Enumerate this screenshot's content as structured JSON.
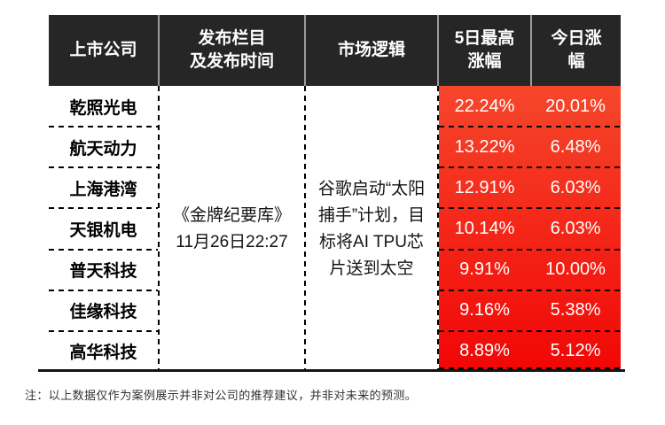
{
  "table": {
    "headers": {
      "company": "上市公司",
      "column_time": "发布栏目\n及发布时间",
      "logic": "市场逻辑",
      "five_day_gain": "5日最高\n涨幅",
      "today_gain": "今日涨\n幅"
    },
    "source": "《金牌纪要库》\n11月26日22:27",
    "market_logic": "谷歌启动“太阳\n捕手”计划，目\n标将AI TPU芯\n片送到太空",
    "rows": [
      {
        "company": "乾照光电",
        "five_day": "22.24%",
        "today": "20.01%"
      },
      {
        "company": "航天动力",
        "five_day": "13.22%",
        "today": "6.48%"
      },
      {
        "company": "上海港湾",
        "five_day": "12.91%",
        "today": "6.03%"
      },
      {
        "company": "天银机电",
        "five_day": "10.14%",
        "today": "6.03%"
      },
      {
        "company": "普天科技",
        "five_day": "9.91%",
        "today": "10.00%"
      },
      {
        "company": "佳缘科技",
        "five_day": "9.16%",
        "today": "5.38%"
      },
      {
        "company": "高华科技",
        "five_day": "8.89%",
        "today": "5.12%"
      }
    ]
  },
  "footnote": "注：以上数据仅作为案例展示并非对公司的推荐建议，并非对未来的预测。",
  "colors": {
    "header_bg": "#262626",
    "header_divider": "#9c9c9c",
    "gain_gradient_top": "#F5472B",
    "gain_gradient_bottom": "#F20606",
    "gain_text": "#FFFFFF"
  },
  "chart_data": {
    "type": "table",
    "columns": [
      "上市公司",
      "发布栏目及发布时间",
      "市场逻辑",
      "5日最高涨幅",
      "今日涨幅"
    ],
    "merged_values": {
      "发布栏目及发布时间": "《金牌纪要库》11月26日22:27",
      "市场逻辑": "谷歌启动“太阳捕手”计划，目标将AI TPU芯片送到太空"
    },
    "rows": [
      [
        "乾照光电",
        "22.24%",
        "20.01%"
      ],
      [
        "航天动力",
        "13.22%",
        "6.48%"
      ],
      [
        "上海港湾",
        "12.91%",
        "6.03%"
      ],
      [
        "天银机电",
        "10.14%",
        "6.03%"
      ],
      [
        "普天科技",
        "9.91%",
        "10.00%"
      ],
      [
        "佳缘科技",
        "9.16%",
        "5.38%"
      ],
      [
        "高华科技",
        "8.89%",
        "5.12%"
      ]
    ],
    "note": "注：以上数据仅作为案例展示并非对公司的推荐建议，并非对未来的预测。"
  }
}
